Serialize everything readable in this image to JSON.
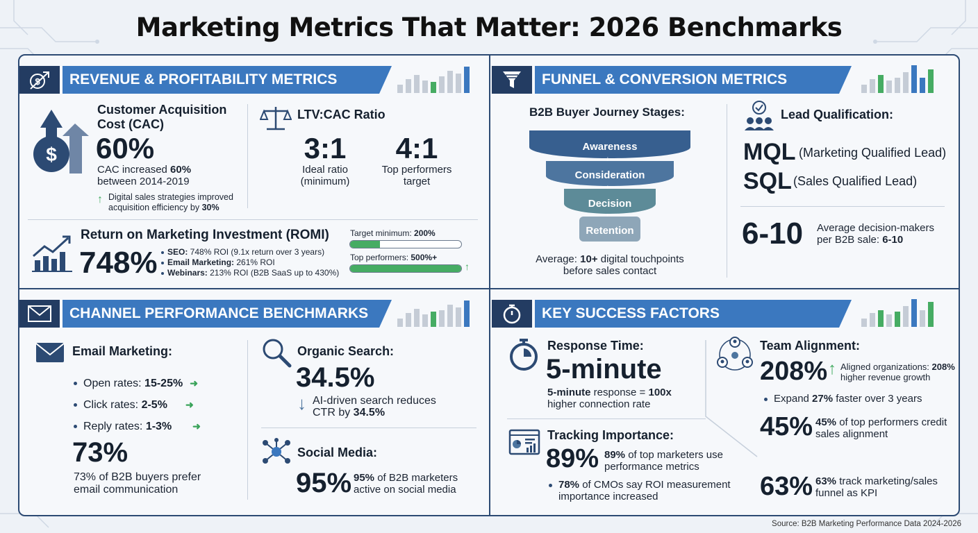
{
  "title": "Marketing Metrics That Matter: 2026 Benchmarks",
  "colors": {
    "navy": "#233c62",
    "header_blue": "#3b78bf",
    "accent_green": "#46ac63",
    "border": "#2c4a73"
  },
  "revenue": {
    "header": "REVENUE & PROFITABILITY METRICS",
    "icon": "money-growth-icon",
    "cac": {
      "label_line1": "Customer Acquisition",
      "label_line2": "Cost (CAC)",
      "value": "60%",
      "desc_line1_pre": "CAC increased ",
      "desc_line1_bold": "60%",
      "desc_line2": "between 2014-2019",
      "note_line1": "Digital sales strategies improved",
      "note_line2_pre": "acquisition efficiency by ",
      "note_line2_bold": "30%"
    },
    "ltv": {
      "label": "LTV:CAC Ratio",
      "ideal_value": "3:1",
      "ideal_line1": "Ideal ratio",
      "ideal_line2": "(minimum)",
      "top_value": "4:1",
      "top_line1": "Top performers",
      "top_line2": "target"
    },
    "romi": {
      "label": "Return on Marketing Investment (ROMI)",
      "value": "748%",
      "items": [
        {
          "bold": "SEO:",
          "rest": " 748% ROI (9.1x return over 3 years)"
        },
        {
          "bold": "Email Marketing:",
          "rest": " 261% ROI"
        },
        {
          "bold": "Webinars:",
          "rest": " 213% ROI (B2B SaaS up to 430%)"
        }
      ],
      "target_label": "Target minimum: ",
      "target_value": "200%",
      "target_fill": 0.27,
      "top_label": "Top performers: ",
      "top_value": "500%+",
      "top_fill": 1.0
    }
  },
  "funnel": {
    "header": "FUNNEL & CONVERSION METRICS",
    "icon": "funnel-icon",
    "journey_label": "B2B Buyer Journey Stages:",
    "stages": [
      "Awareness",
      "Consideration",
      "Decision",
      "Retention"
    ],
    "touch_pre": "Average: ",
    "touch_bold": "10+",
    "touch_post": " digital touchpoints",
    "touch_line2": "before sales contact",
    "lead_label": "Lead Qualification:",
    "mql": "MQL",
    "mql_desc": "(Marketing Qualified Lead)",
    "sql": "SQL",
    "sql_desc": "(Sales Qualified Lead)",
    "dm_value": "6-10",
    "dm_line1": "Average decision-makers",
    "dm_line2_pre": "per B2B sale: ",
    "dm_line2_bold": "6-10"
  },
  "channel": {
    "header": "CHANNEL PERFORMANCE BENCHMARKS",
    "icon": "envelope-icon",
    "email_label": "Email Marketing:",
    "email_items": [
      {
        "pre": "Open rates: ",
        "bold": "15-25%"
      },
      {
        "pre": "Click rates: ",
        "bold": "2-5%"
      },
      {
        "pre": "Reply rates: ",
        "bold": "1-3%"
      }
    ],
    "email_pref_value": "73%",
    "email_pref_line1": "73% of B2B buyers prefer",
    "email_pref_line2": "email communication",
    "organic_label": "Organic Search:",
    "organic_value": "34.5%",
    "organic_line1": "AI-driven search reduces",
    "organic_line2_pre": "CTR by ",
    "organic_line2_bold": "34.5%",
    "social_label": "Social Media:",
    "social_value": "95%",
    "social_line1_bold": "95%",
    "social_line1_rest": " of B2B marketers",
    "social_line2": "active on social media"
  },
  "success": {
    "header": "KEY SUCCESS FACTORS",
    "icon": "stopwatch-icon",
    "response_label": "Response Time:",
    "response_value": "5-minute",
    "response_line1_bold": "5-minute",
    "response_line1_mid": " response = ",
    "response_line1_bold2": "100x",
    "response_line2": "higher connection rate",
    "tracking_label": "Tracking Importance:",
    "tracking_value": "89%",
    "tracking_line1_bold": "89%",
    "tracking_line1_rest": " of top marketers use",
    "tracking_line2": "performance metrics",
    "cmo_bold": "78%",
    "cmo_rest": " of CMOs say ROI measurement",
    "cmo_line2": "importance increased",
    "team_label": "Team Alignment:",
    "team_value": "208%",
    "team_line1_pre": "Aligned organizations: ",
    "team_line1_bold": "208%",
    "team_line2": "higher revenue growth",
    "expand_pre": "Expand ",
    "expand_bold": "27%",
    "expand_rest": " faster over 3 years",
    "credit_value": "45%",
    "credit_line1_bold": "45%",
    "credit_line1_rest": " of top performers credit",
    "credit_line2": "sales alignment",
    "kpi_value": "63%",
    "kpi_line1_bold": "63%",
    "kpi_line1_rest": " track marketing/sales",
    "kpi_line2": "funnel as KPI"
  },
  "source": "Source: B2B Marketing Performance Data 2024-2026"
}
